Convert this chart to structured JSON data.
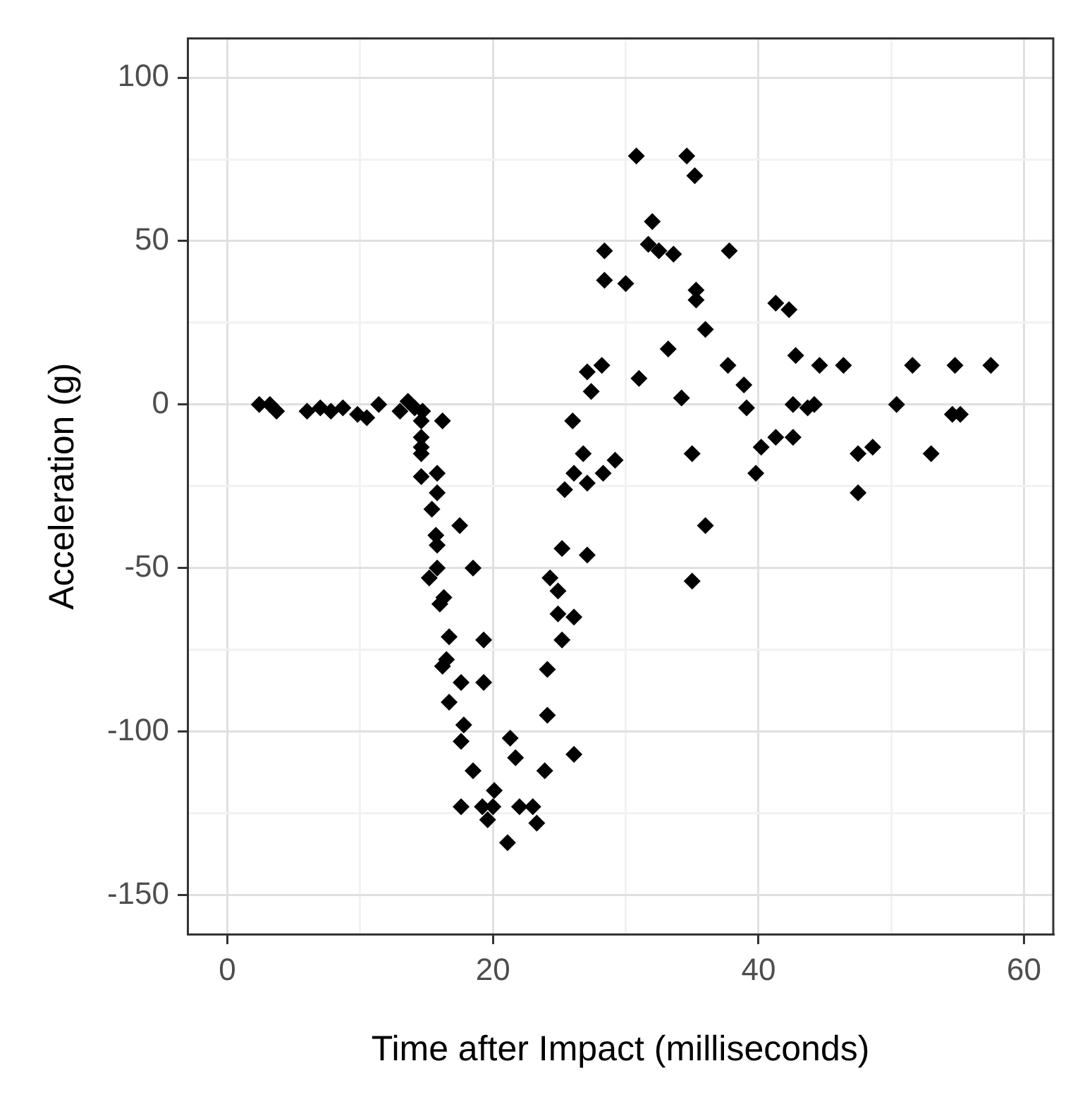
{
  "chart_data": {
    "type": "scatter",
    "xlabel": "Time after Impact (milliseconds)",
    "ylabel": "Acceleration (g)",
    "xlim": [
      -3,
      62.2
    ],
    "ylim": [
      -162,
      112
    ],
    "xticks": [
      0,
      {
        "value": 10,
        "label": null
      },
      20,
      {
        "value": 30,
        "label": null
      },
      40,
      {
        "value": 50,
        "label": null
      },
      60
    ],
    "yticks": [
      -150,
      {
        "value": -125,
        "label": null
      },
      -100,
      {
        "value": -75,
        "label": null
      },
      -50,
      {
        "value": -25,
        "label": null
      },
      0,
      {
        "value": 25,
        "label": null
      },
      50,
      {
        "value": 75,
        "label": null
      },
      100
    ],
    "grid": true,
    "marker": "diamond",
    "legend": false,
    "series": [
      {
        "color": "#000000",
        "x": [
          2.4,
          3.2,
          3.7,
          6.0,
          7.0,
          7.8,
          8.7,
          9.8,
          10.5,
          11.4,
          13.0,
          13.6,
          14.1,
          14.7,
          14.6,
          16.2,
          14.6,
          14.6,
          14.6,
          14.6,
          15.8,
          15.8,
          15.4,
          17.5,
          15.7,
          15.8,
          15.8,
          18.5,
          15.2,
          16.3,
          16.0,
          16.7,
          19.3,
          16.5,
          16.2,
          17.6,
          19.3,
          16.7,
          17.8,
          17.6,
          21.3,
          21.7,
          18.5,
          20.1,
          17.6,
          19.2,
          20.0,
          19.6,
          22.0,
          23.0,
          23.3,
          21.1,
          24.3,
          24.9,
          24.9,
          26.1,
          25.2,
          24.1,
          24.1,
          26.1,
          23.9,
          25.2,
          27.1,
          25.4,
          26.1,
          27.1,
          28.3,
          29.2,
          26.8,
          26.0,
          27.1,
          27.4,
          28.2,
          31.0,
          30.8,
          34.6,
          35.2,
          32.0,
          31.7,
          32.5,
          33.6,
          28.4,
          37.8,
          28.4,
          30.0,
          35.3,
          35.3,
          41.3,
          42.3,
          36.0,
          33.2,
          42.8,
          44.6,
          37.7,
          34.2,
          38.9,
          39.1,
          42.6,
          43.7,
          40.2,
          41.3,
          42.6,
          39.8,
          35.0,
          36.0,
          35.0,
          46.4,
          51.6,
          54.8,
          57.5,
          44.2,
          50.4,
          54.6,
          55.2,
          47.5,
          48.6,
          53.0,
          47.5
        ],
        "values": [
          0,
          0,
          -2,
          -2,
          -1,
          -2,
          -1,
          -3,
          -4,
          0,
          -2,
          1,
          -1,
          -2,
          -5,
          -5,
          -10,
          -13,
          -15,
          -22,
          -21,
          -27,
          -32,
          -37,
          -40,
          -43,
          -50,
          -50,
          -53,
          -59,
          -61,
          -71,
          -72,
          -78,
          -80,
          -85,
          -85,
          -91,
          -98,
          -103,
          -102,
          -108,
          -112,
          -118,
          -123,
          -123,
          -123,
          -127,
          -123,
          -123,
          -128,
          -134,
          -53,
          -57,
          -64,
          -65,
          -72,
          -81,
          -95,
          -107,
          -112,
          -44,
          -46,
          -26,
          -21,
          -24,
          -21,
          -17,
          -15,
          -5,
          10,
          4,
          12,
          8,
          76,
          76,
          70,
          56,
          49,
          47,
          46,
          47,
          47,
          38,
          37,
          35,
          32,
          31,
          29,
          23,
          17,
          15,
          12,
          12,
          2,
          6,
          -1,
          0,
          -1,
          -13,
          -10,
          -10,
          -21,
          -15,
          -37,
          -54,
          12,
          12,
          12,
          12,
          0,
          0,
          -3,
          -3,
          -15,
          -13,
          -15,
          -27
        ]
      }
    ]
  }
}
